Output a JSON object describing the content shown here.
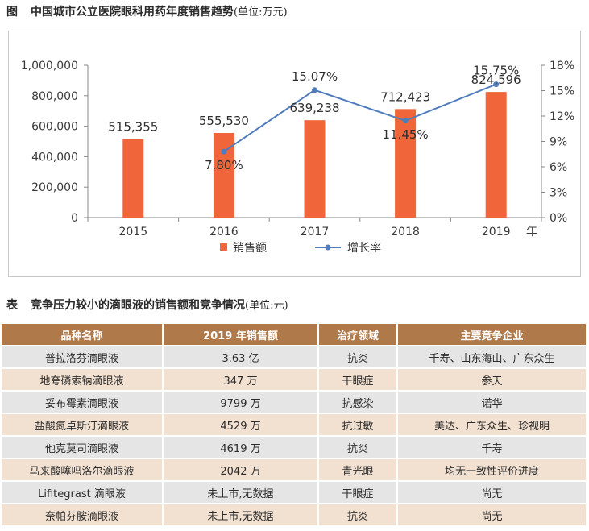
{
  "figure": {
    "label": "图",
    "title": "中国城市公立医院眼科用药年度销售趋势",
    "unit": "(单位:万元)"
  },
  "chart_data": {
    "type": "bar+line",
    "categories": [
      "2015",
      "2016",
      "2017",
      "2018",
      "2019"
    ],
    "x_unit": "年",
    "series": [
      {
        "name": "销售额",
        "type": "bar",
        "axis": "left",
        "color": "#f0653a",
        "values": [
          515355,
          555530,
          639238,
          712423,
          824596
        ],
        "labels": [
          "515,355",
          "555,530",
          "639,238",
          "712,423",
          "824,596"
        ]
      },
      {
        "name": "增长率",
        "type": "line",
        "axis": "right",
        "color": "#4f7cbd",
        "x": [
          "2016",
          "2017",
          "2018",
          "2019"
        ],
        "values": [
          7.8,
          15.07,
          11.45,
          15.75
        ],
        "labels": [
          "7.80%",
          "15.07%",
          "11.45%",
          "15.75%"
        ]
      }
    ],
    "y_left": {
      "ylim": [
        0,
        1000000
      ],
      "ticks": [
        0,
        200000,
        400000,
        600000,
        800000,
        1000000
      ],
      "tick_labels": [
        "0",
        "200,000",
        "400,000",
        "600,000",
        "800,000",
        "1,000,000"
      ]
    },
    "y_right": {
      "ylim": [
        0,
        18
      ],
      "ticks": [
        0,
        3,
        6,
        9,
        12,
        15,
        18
      ],
      "tick_labels": [
        "0%",
        "3%",
        "6%",
        "9%",
        "12%",
        "15%",
        "18%"
      ]
    },
    "legend": [
      "销售额",
      "增长率"
    ],
    "legend_position": "bottom",
    "grid": false
  },
  "table": {
    "label": "表",
    "title": "竞争压力较小的滴眼液的销售额和竞争情况",
    "unit": "(单位:元)",
    "headers": [
      "品种名称",
      "2019 年销售额",
      "治疗领域",
      "主要竞争企业"
    ],
    "rows": [
      [
        "普拉洛芬滴眼液",
        "3.63 亿",
        "抗炎",
        "千寿、山东海山、广东众生"
      ],
      [
        "地夸磷索钠滴眼液",
        "347 万",
        "干眼症",
        "参天"
      ],
      [
        "妥布霉素滴眼液",
        "9799 万",
        "抗感染",
        "诺华"
      ],
      [
        "盐酸氮卓斯汀滴眼液",
        "4529 万",
        "抗过敏",
        "美达、广东众生、珍视明"
      ],
      [
        "他克莫司滴眼液",
        "4619 万",
        "抗炎",
        "千寿"
      ],
      [
        "马来酸噻吗洛尔滴眼液",
        "2042 万",
        "青光眼",
        "均无一致性评价进度"
      ],
      [
        "Lifitegrast 滴眼液",
        "未上市,无数据",
        "干眼症",
        "尚无"
      ],
      [
        "奈帕芬胺滴眼液",
        "未上市,无数据",
        "抗炎",
        "尚无"
      ]
    ]
  }
}
